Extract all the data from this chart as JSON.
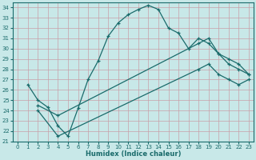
{
  "xlabel": "Humidex (Indice chaleur)",
  "bg_color": "#c8e8e8",
  "grid_color": "#b0d0d0",
  "line_color": "#1a6b6b",
  "xlim": [
    -0.5,
    23.5
  ],
  "ylim": [
    21,
    34.5
  ],
  "xticks": [
    0,
    1,
    2,
    3,
    4,
    5,
    6,
    7,
    8,
    9,
    10,
    11,
    12,
    13,
    14,
    15,
    16,
    17,
    18,
    19,
    20,
    21,
    22,
    23
  ],
  "yticks": [
    21,
    22,
    23,
    24,
    25,
    26,
    27,
    28,
    29,
    30,
    31,
    32,
    33,
    34
  ],
  "series1_x": [
    1,
    2,
    3,
    4,
    5,
    6,
    7,
    8,
    9,
    10,
    11,
    12,
    13,
    14,
    15,
    16,
    17,
    18,
    19,
    20,
    21,
    22,
    23
  ],
  "series1_y": [
    26.5,
    25.0,
    24.3,
    22.5,
    21.5,
    24.2,
    27.0,
    28.8,
    31.2,
    32.5,
    33.3,
    33.8,
    34.2,
    33.8,
    32.0,
    31.5,
    30.0,
    31.0,
    30.5,
    29.5,
    28.5,
    28.0,
    27.5
  ],
  "series2_x": [
    2,
    4,
    18,
    19,
    20,
    21,
    22,
    23
  ],
  "series2_y": [
    24.5,
    23.5,
    30.5,
    31.0,
    29.5,
    29.0,
    28.5,
    27.5
  ],
  "series3_x": [
    2,
    4,
    18,
    19,
    20,
    21,
    22,
    23
  ],
  "series3_y": [
    24.0,
    21.5,
    28.0,
    28.5,
    27.5,
    27.0,
    26.5,
    27.0
  ],
  "line2_x": [
    2,
    23
  ],
  "line2_y": [
    24.5,
    28.0
  ],
  "line3_x": [
    2,
    23
  ],
  "line3_y": [
    23.0,
    27.5
  ]
}
